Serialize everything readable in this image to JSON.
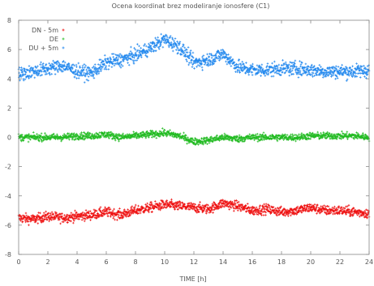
{
  "chart_data": {
    "type": "scatter",
    "title": "Ocena koordinat brez modeliranje ionosfere (C1)",
    "xlabel": "TIME [h]",
    "ylabel": "",
    "xlim": [
      0,
      24
    ],
    "ylim": [
      -8,
      8
    ],
    "xticks": [
      0,
      2,
      4,
      6,
      8,
      10,
      12,
      14,
      16,
      18,
      20,
      22,
      24
    ],
    "yticks": [
      -8,
      -6,
      -4,
      -2,
      0,
      2,
      4,
      6,
      8
    ],
    "grid": false,
    "legend_position": "top-left",
    "series": [
      {
        "name": "DN - 5m",
        "color": "#ee1111",
        "x": [
          0,
          1,
          2,
          3,
          4,
          5,
          6,
          7,
          8,
          9,
          10,
          11,
          12,
          13,
          14,
          15,
          16,
          17,
          18,
          19,
          20,
          21,
          22,
          23,
          24
        ],
        "y": [
          -5.5,
          -5.6,
          -5.4,
          -5.5,
          -5.4,
          -5.3,
          -5.1,
          -5.3,
          -5.0,
          -4.8,
          -4.6,
          -4.7,
          -4.8,
          -4.9,
          -4.5,
          -4.7,
          -5.0,
          -4.9,
          -5.1,
          -5.0,
          -4.8,
          -5.0,
          -5.0,
          -5.1,
          -5.2
        ],
        "spread": 0.35
      },
      {
        "name": "DE",
        "color": "#22bb22",
        "x": [
          0,
          1,
          2,
          3,
          4,
          5,
          6,
          7,
          8,
          9,
          10,
          11,
          12,
          13,
          14,
          15,
          16,
          17,
          18,
          19,
          20,
          21,
          22,
          23,
          24
        ],
        "y": [
          0.0,
          0.0,
          0.0,
          0.0,
          0.1,
          0.1,
          0.2,
          0.0,
          0.1,
          0.2,
          0.3,
          0.1,
          -0.3,
          -0.2,
          0.0,
          -0.1,
          0.0,
          0.0,
          0.0,
          0.0,
          0.1,
          0.1,
          0.1,
          0.1,
          0.0
        ],
        "spread": 0.25
      },
      {
        "name": "DU + 5m",
        "color": "#2288ee",
        "x": [
          0,
          1,
          2,
          3,
          4,
          5,
          6,
          7,
          8,
          9,
          10,
          11,
          12,
          13,
          14,
          15,
          16,
          17,
          18,
          19,
          20,
          21,
          22,
          23,
          24
        ],
        "y": [
          4.3,
          4.5,
          4.7,
          4.9,
          4.5,
          4.4,
          5.1,
          5.3,
          5.6,
          6.1,
          6.7,
          6.2,
          5.1,
          5.3,
          5.7,
          4.8,
          4.6,
          4.6,
          4.7,
          4.7,
          4.6,
          4.5,
          4.5,
          4.5,
          4.6
        ],
        "spread": 0.5
      }
    ]
  }
}
